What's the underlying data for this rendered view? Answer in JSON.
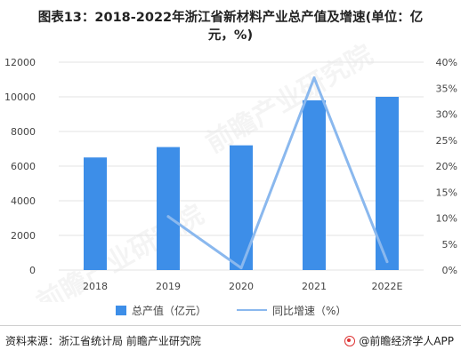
{
  "title_line1": "图表13：2018-2022年浙江省新材料产业总产值及增速(单位：亿",
  "title_line2": "元，%)",
  "watermark": "前瞻产业研究院",
  "source": "资料来源：浙江省统计局 前瞻产业研究院",
  "brand": "@前瞻经济学人APP",
  "colors": {
    "bar": "#3d8ee8",
    "line": "#8ab8ee",
    "grid": "#e3e3e3"
  },
  "chart_data": {
    "type": "bar",
    "categories": [
      "2018",
      "2019",
      "2020",
      "2021",
      "2022E"
    ],
    "series": [
      {
        "name": "总产值（亿元）",
        "type": "bar",
        "axis": "left",
        "values": [
          6500,
          7100,
          7200,
          9800,
          10000
        ]
      },
      {
        "name": "同比增速（%）",
        "type": "line",
        "axis": "right",
        "values": [
          null,
          10.3,
          0.4,
          37.0,
          1.6
        ]
      }
    ],
    "ylim_left": [
      0,
      12000
    ],
    "yticks_left": [
      "0",
      "2000",
      "4000",
      "6000",
      "8000",
      "10000",
      "12000"
    ],
    "ylim_right": [
      0,
      40
    ],
    "yticks_right": [
      "0%",
      "5%",
      "10%",
      "15%",
      "20%",
      "25%",
      "30%",
      "35%",
      "40%"
    ],
    "grid": true,
    "legend_position": "bottom"
  }
}
